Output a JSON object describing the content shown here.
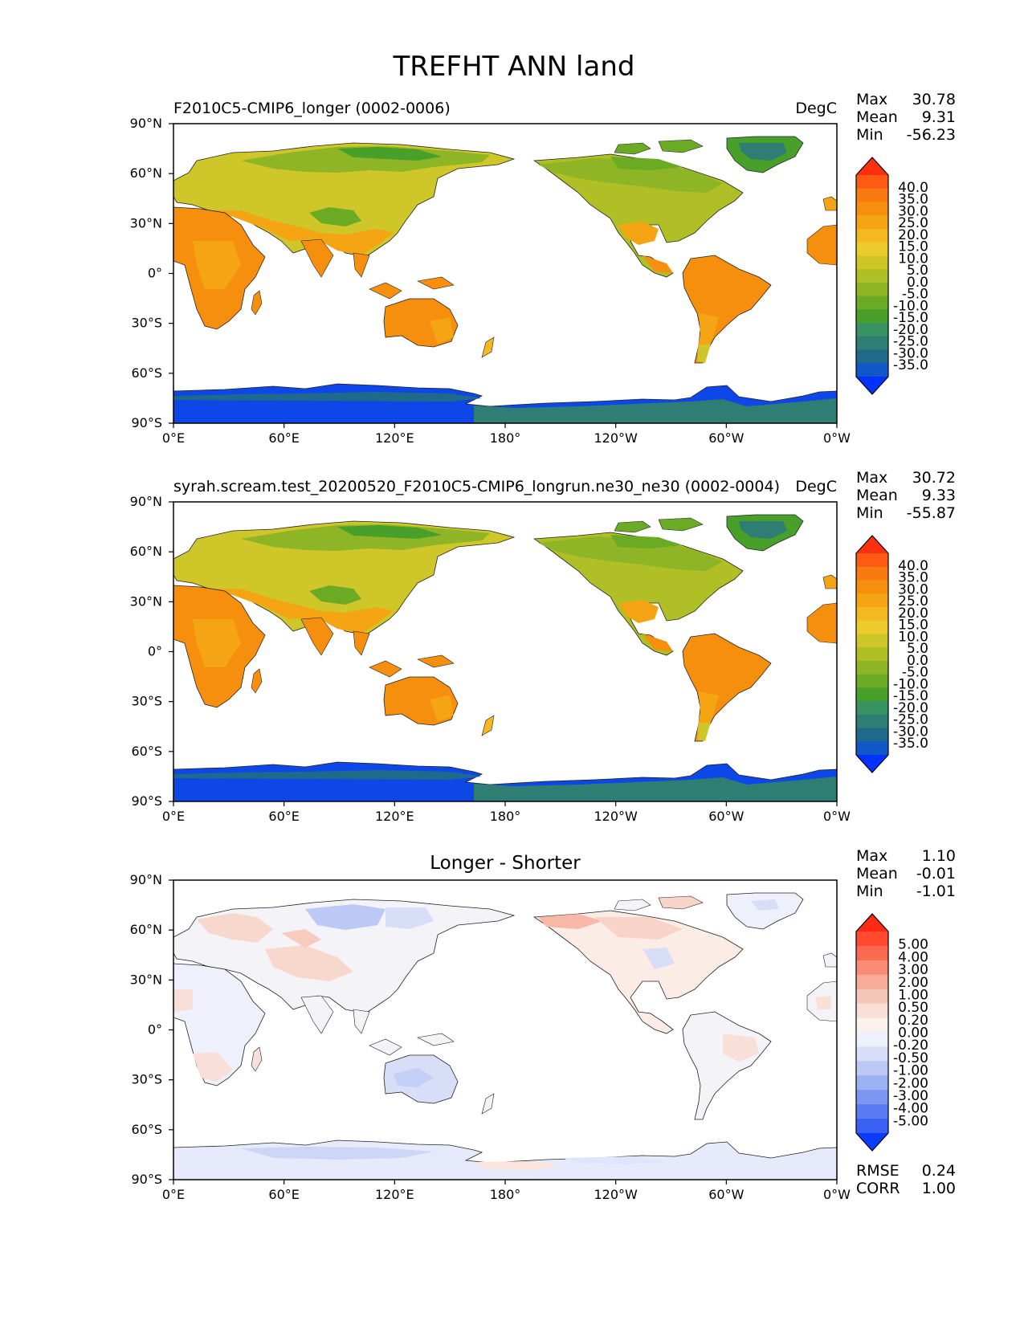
{
  "title": "TREFHT ANN land",
  "chart_data": [
    {
      "type": "heatmap",
      "title": "F2010C5-CMIP6_longer (0002-0006)",
      "units": "DegC",
      "stats": {
        "max_label": "Max",
        "max": "30.78",
        "mean_label": "Mean",
        "mean": "9.31",
        "min_label": "Min",
        "min": "-56.23"
      },
      "colorbar": {
        "levels": [
          "40.0",
          "35.0",
          "30.0",
          "25.0",
          "20.0",
          "15.0",
          "10.0",
          "5.0",
          "0.0",
          "-5.0",
          "-10.0",
          "-15.0",
          "-20.0",
          "-25.0",
          "-30.0",
          "-35.0"
        ],
        "colors": [
          "#ff3010",
          "#ff5a14",
          "#f97a10",
          "#f68f0e",
          "#f5a414",
          "#f4b920",
          "#eccb2c",
          "#cfc62a",
          "#b0bf26",
          "#8eb526",
          "#6aaa24",
          "#48a02a",
          "#389262",
          "#2e7e74",
          "#1f6a8a",
          "#1058c8",
          "#0033ff"
        ]
      },
      "x_ticks": [
        "0°E",
        "60°E",
        "120°E",
        "180°",
        "120°W",
        "60°W",
        "0°W"
      ],
      "y_ticks": [
        "90°N",
        "60°N",
        "30°N",
        "0°",
        "30°S",
        "60°S",
        "90°S"
      ],
      "x_range": [
        0,
        360
      ],
      "y_range": [
        -90,
        90
      ]
    },
    {
      "type": "heatmap",
      "title": "syrah.scream.test_20200520_F2010C5-CMIP6_longrun.ne30_ne30 (0002-0004)",
      "units": "DegC",
      "stats": {
        "max_label": "Max",
        "max": "30.72",
        "mean_label": "Mean",
        "mean": "9.33",
        "min_label": "Min",
        "min": "-55.87"
      },
      "colorbar": {
        "levels": [
          "40.0",
          "35.0",
          "30.0",
          "25.0",
          "20.0",
          "15.0",
          "10.0",
          "5.0",
          "0.0",
          "-5.0",
          "-10.0",
          "-15.0",
          "-20.0",
          "-25.0",
          "-30.0",
          "-35.0"
        ],
        "colors": [
          "#ff3010",
          "#ff5a14",
          "#f97a10",
          "#f68f0e",
          "#f5a414",
          "#f4b920",
          "#eccb2c",
          "#cfc62a",
          "#b0bf26",
          "#8eb526",
          "#6aaa24",
          "#48a02a",
          "#389262",
          "#2e7e74",
          "#1f6a8a",
          "#1058c8",
          "#0033ff"
        ]
      },
      "x_ticks": [
        "0°E",
        "60°E",
        "120°E",
        "180°",
        "120°W",
        "60°W",
        "0°W"
      ],
      "y_ticks": [
        "90°N",
        "60°N",
        "30°N",
        "0°",
        "30°S",
        "60°S",
        "90°S"
      ],
      "x_range": [
        0,
        360
      ],
      "y_range": [
        -90,
        90
      ]
    },
    {
      "type": "heatmap",
      "title": "Longer - Shorter",
      "units": "",
      "stats": {
        "max_label": "Max",
        "max": "1.10",
        "mean_label": "Mean",
        "mean": "-0.01",
        "min_label": "Min",
        "min": "-1.01"
      },
      "colorbar": {
        "levels": [
          "5.00",
          "4.00",
          "3.00",
          "2.00",
          "1.00",
          "0.50",
          "0.20",
          "0.00",
          "-0.20",
          "-0.50",
          "-1.00",
          "-2.00",
          "-3.00",
          "-4.00",
          "-5.00"
        ],
        "colors": [
          "#ff2a14",
          "#ff4a30",
          "#fb6a50",
          "#f98c76",
          "#f7ab98",
          "#f6c6b8",
          "#f8e0d8",
          "#fbf2ee",
          "#eef0fb",
          "#d8def8",
          "#bcc8f6",
          "#9cb0f4",
          "#7c96f2",
          "#5a7cf2",
          "#3a60f4",
          "#0a3cff"
        ]
      },
      "x_ticks": [
        "0°E",
        "60°E",
        "120°E",
        "180°",
        "120°W",
        "60°W",
        "0°W"
      ],
      "y_ticks": [
        "90°N",
        "60°N",
        "30°N",
        "0°",
        "30°S",
        "60°S",
        "90°S"
      ],
      "x_range": [
        0,
        360
      ],
      "y_range": [
        -90,
        90
      ],
      "metrics": {
        "rmse_label": "RMSE",
        "rmse": "0.24",
        "corr_label": "CORR",
        "corr": "1.00"
      }
    }
  ]
}
